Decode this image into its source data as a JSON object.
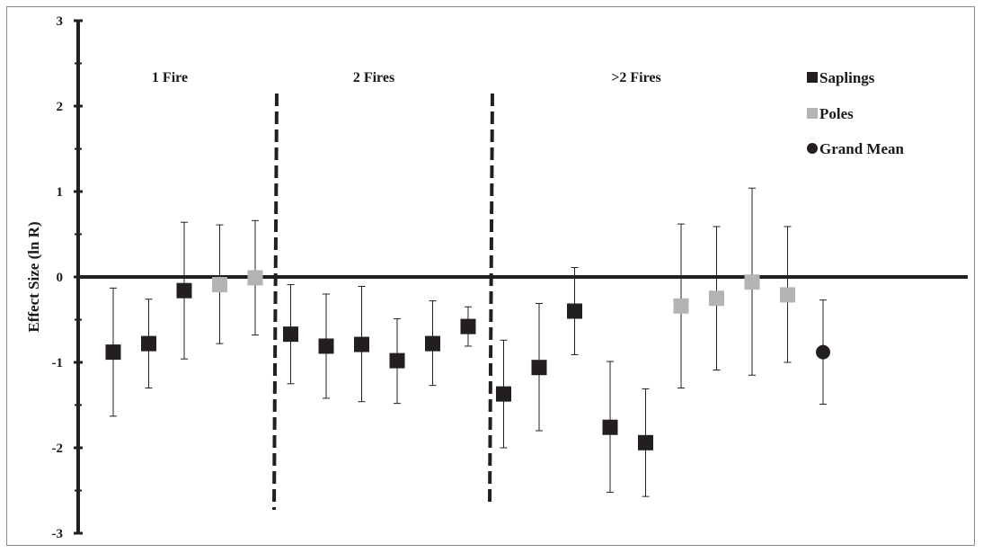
{
  "chart_data": {
    "type": "scatter",
    "title": "",
    "xlabel": "",
    "ylabel": "Effect Size  (ln R)",
    "ylim": [
      -3,
      3
    ],
    "y_ticks": [
      "3",
      "2",
      "1",
      "0",
      "-1",
      "-2",
      "-3"
    ],
    "grid": false,
    "legend_position": "top-right",
    "groups": [
      {
        "label": "1 Fire"
      },
      {
        "label": "2 Fires"
      },
      {
        "label": ">2 Fires"
      }
    ],
    "legend": [
      {
        "label": "Saplings",
        "marker": "square",
        "color": "#231f20"
      },
      {
        "label": "Poles",
        "marker": "square",
        "color": "#b3b3b3"
      },
      {
        "label": "Grand Mean",
        "marker": "circle",
        "color": "#231f20"
      }
    ],
    "points": [
      {
        "group": "1 Fire",
        "series": "Saplings",
        "y": -0.88,
        "lo": -1.63,
        "hi": -0.13
      },
      {
        "group": "1 Fire",
        "series": "Saplings",
        "y": -0.78,
        "lo": -1.3,
        "hi": -0.26
      },
      {
        "group": "1 Fire",
        "series": "Saplings",
        "y": -0.16,
        "lo": -0.96,
        "hi": 0.64
      },
      {
        "group": "1 Fire",
        "series": "Poles",
        "y": -0.09,
        "lo": -0.78,
        "hi": 0.61
      },
      {
        "group": "1 Fire",
        "series": "Poles",
        "y": -0.01,
        "lo": -0.68,
        "hi": 0.66
      },
      {
        "group": "2 Fires",
        "series": "Saplings",
        "y": -0.67,
        "lo": -1.25,
        "hi": -0.09
      },
      {
        "group": "2 Fires",
        "series": "Saplings",
        "y": -0.81,
        "lo": -1.42,
        "hi": -0.2
      },
      {
        "group": "2 Fires",
        "series": "Saplings",
        "y": -0.79,
        "lo": -1.46,
        "hi": -0.11
      },
      {
        "group": "2 Fires",
        "series": "Saplings",
        "y": -0.98,
        "lo": -1.48,
        "hi": -0.49
      },
      {
        "group": "2 Fires",
        "series": "Saplings",
        "y": -0.78,
        "lo": -1.27,
        "hi": -0.28
      },
      {
        "group": "2 Fires",
        "series": "Saplings",
        "y": -0.58,
        "lo": -0.81,
        "hi": -0.35
      },
      {
        "group": ">2 Fires",
        "series": "Saplings",
        "y": -1.37,
        "lo": -2.0,
        "hi": -0.74
      },
      {
        "group": ">2 Fires",
        "series": "Saplings",
        "y": -1.06,
        "lo": -1.8,
        "hi": -0.31
      },
      {
        "group": ">2 Fires",
        "series": "Saplings",
        "y": -0.4,
        "lo": -0.91,
        "hi": 0.11
      },
      {
        "group": ">2 Fires",
        "series": "Saplings",
        "y": -1.76,
        "lo": -2.52,
        "hi": -0.99
      },
      {
        "group": ">2 Fires",
        "series": "Saplings",
        "y": -1.94,
        "lo": -2.57,
        "hi": -1.31
      },
      {
        "group": ">2 Fires",
        "series": "Poles",
        "y": -0.34,
        "lo": -1.3,
        "hi": 0.62
      },
      {
        "group": ">2 Fires",
        "series": "Poles",
        "y": -0.25,
        "lo": -1.09,
        "hi": 0.59
      },
      {
        "group": ">2 Fires",
        "series": "Poles",
        "y": -0.06,
        "lo": -1.15,
        "hi": 1.04
      },
      {
        "group": ">2 Fires",
        "series": "Poles",
        "y": -0.21,
        "lo": -1.0,
        "hi": 0.59
      },
      {
        "group": "Grand Mean",
        "series": "Grand Mean",
        "y": -0.88,
        "lo": -1.49,
        "hi": -0.27
      }
    ]
  }
}
